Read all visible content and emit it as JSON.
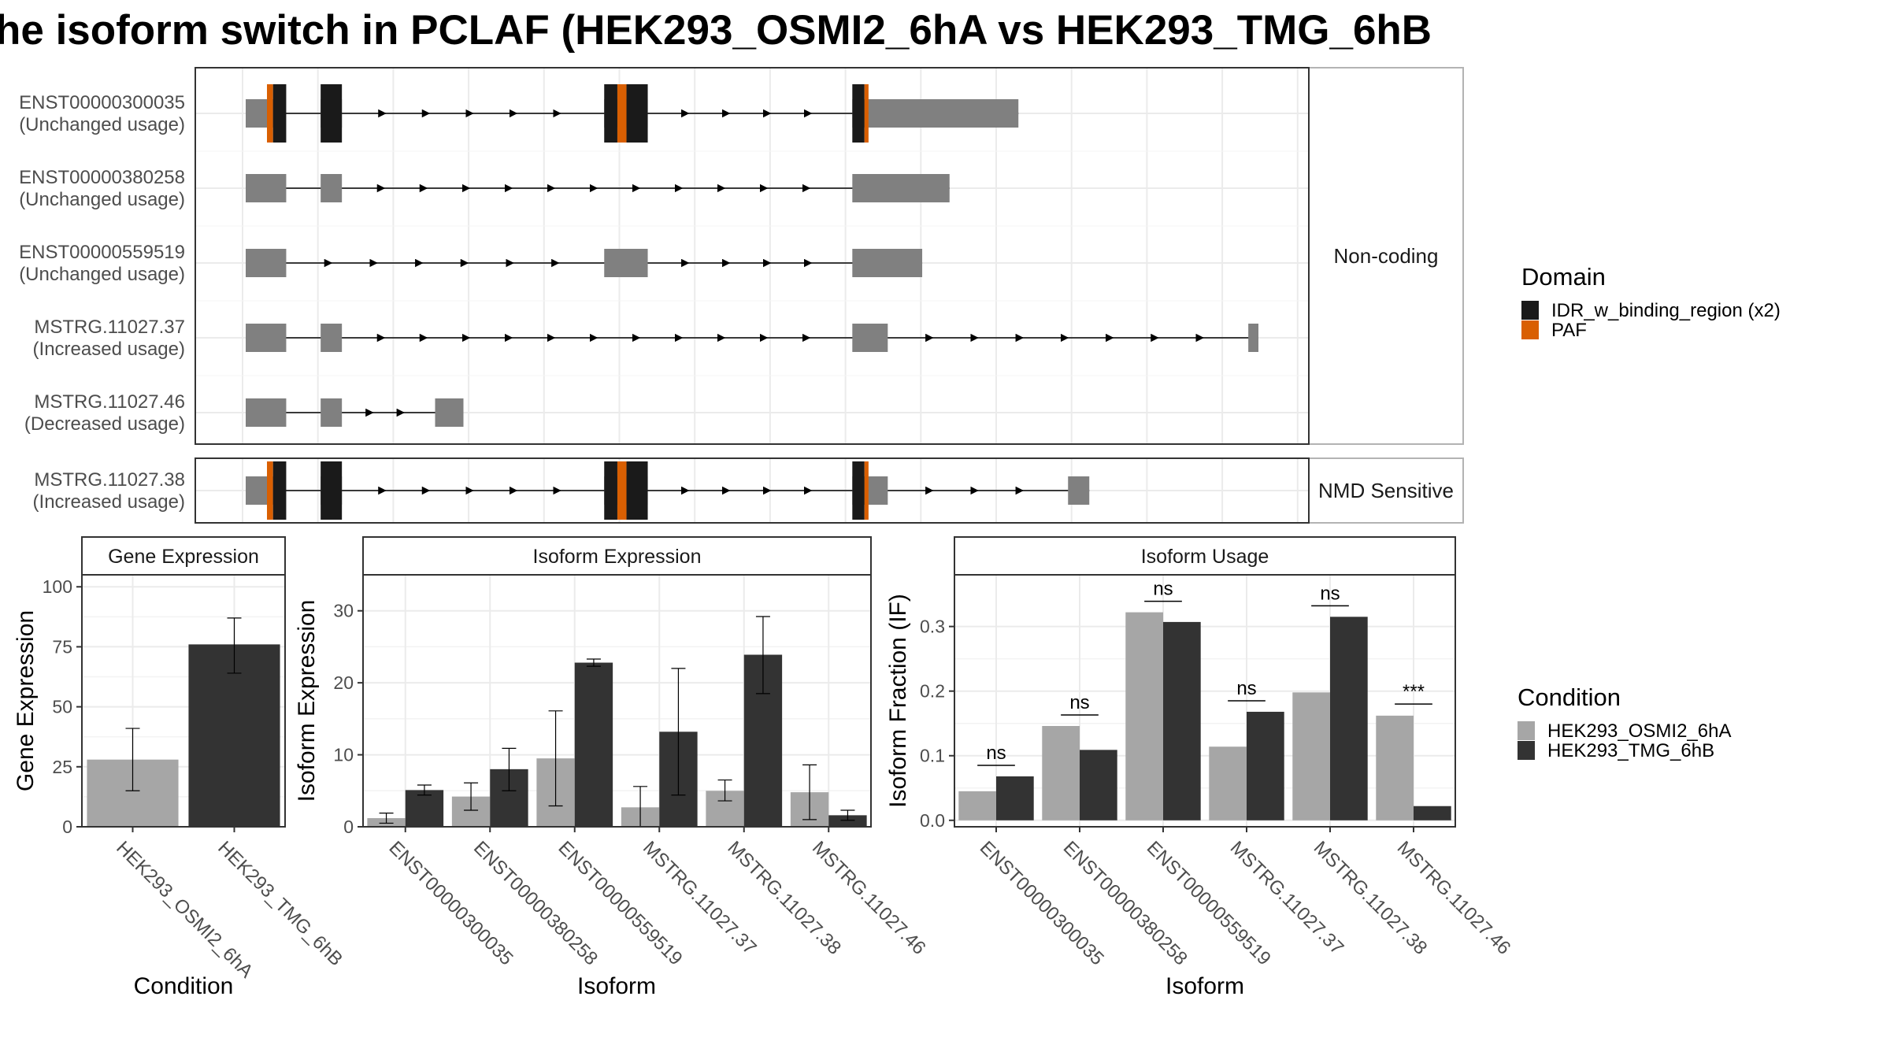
{
  "title": "he isoform switch in PCLAF (HEK293_OSMI2_6hA vs HEK293_TMG_6hB",
  "colors": {
    "exon": "#808080",
    "idr": "#1a1a1a",
    "paf": "#d95f02",
    "cond1": "#a6a6a6",
    "cond2": "#333333",
    "grid": "#ebebeb",
    "strip": "#ffffff",
    "frame": "#333333"
  },
  "structure": {
    "facet_noncoding": "Non-coding",
    "facet_nmd": "NMD Sensitive",
    "legend_title": "Domain",
    "legend_items": [
      {
        "label": "IDR_w_binding_region (x2)",
        "color": "#1a1a1a"
      },
      {
        "label": "PAF",
        "color": "#d95f02"
      }
    ],
    "transcripts": [
      {
        "id": "ENST00000300035",
        "usage": "(Unchanged usage)",
        "group": "Non-coding",
        "exons": [
          [
            0.0,
            0.03
          ],
          [
            0.074,
            0.095
          ],
          [
            0.354,
            0.397
          ],
          [
            0.599,
            0.615
          ],
          [
            0.615,
            0.763
          ]
        ],
        "domains": [
          {
            "type": "paf",
            "range": [
              0.021,
              0.027
            ]
          },
          {
            "type": "idr",
            "range": [
              0.027,
              0.04
            ]
          },
          {
            "type": "idr",
            "range": [
              0.074,
              0.095
            ]
          },
          {
            "type": "idr",
            "range": [
              0.354,
              0.367
            ]
          },
          {
            "type": "paf",
            "range": [
              0.367,
              0.376
            ]
          },
          {
            "type": "idr",
            "range": [
              0.376,
              0.397
            ]
          },
          {
            "type": "idr",
            "range": [
              0.599,
              0.611
            ]
          },
          {
            "type": "paf",
            "range": [
              0.611,
              0.615
            ]
          }
        ]
      },
      {
        "id": "ENST00000380258",
        "usage": "(Unchanged usage)",
        "group": "Non-coding",
        "exons": [
          [
            0.0,
            0.04
          ],
          [
            0.074,
            0.095
          ],
          [
            0.599,
            0.695
          ]
        ],
        "domains": []
      },
      {
        "id": "ENST00000559519",
        "usage": "(Unchanged usage)",
        "group": "Non-coding",
        "exons": [
          [
            0.0,
            0.04
          ],
          [
            0.354,
            0.397
          ],
          [
            0.599,
            0.668
          ]
        ],
        "domains": []
      },
      {
        "id": "MSTRG.11027.37",
        "usage": "(Increased usage)",
        "group": "Non-coding",
        "exons": [
          [
            0.0,
            0.04
          ],
          [
            0.074,
            0.095
          ],
          [
            0.599,
            0.634
          ],
          [
            0.99,
            1.0
          ]
        ],
        "domains": []
      },
      {
        "id": "MSTRG.11027.46",
        "usage": "(Decreased usage)",
        "group": "Non-coding",
        "exons": [
          [
            0.0,
            0.04
          ],
          [
            0.074,
            0.095
          ],
          [
            0.187,
            0.215
          ]
        ],
        "domains": []
      },
      {
        "id": "MSTRG.11027.38",
        "usage": "(Increased usage)",
        "group": "NMD Sensitive",
        "exons": [
          [
            0.0,
            0.03
          ],
          [
            0.074,
            0.095
          ],
          [
            0.354,
            0.397
          ],
          [
            0.599,
            0.615
          ],
          [
            0.615,
            0.634
          ],
          [
            0.812,
            0.833
          ]
        ],
        "domains": [
          {
            "type": "paf",
            "range": [
              0.021,
              0.027
            ]
          },
          {
            "type": "idr",
            "range": [
              0.027,
              0.04
            ]
          },
          {
            "type": "idr",
            "range": [
              0.074,
              0.095
            ]
          },
          {
            "type": "idr",
            "range": [
              0.354,
              0.367
            ]
          },
          {
            "type": "paf",
            "range": [
              0.367,
              0.376
            ]
          },
          {
            "type": "idr",
            "range": [
              0.376,
              0.397
            ]
          },
          {
            "type": "idr",
            "range": [
              0.599,
              0.611
            ]
          },
          {
            "type": "paf",
            "range": [
              0.611,
              0.615
            ]
          }
        ]
      }
    ]
  },
  "chart_data": [
    {
      "type": "bar",
      "title": "Gene Expression",
      "xlabel": "Condition",
      "ylabel": "Gene Expression",
      "categories": [
        "HEK293_OSMI2_6hA",
        "HEK293_TMG_6hB"
      ],
      "values": [
        28,
        76
      ],
      "error_low": [
        15,
        64
      ],
      "error_high": [
        41,
        87
      ],
      "ylim": [
        0,
        105
      ],
      "yticks": [
        0,
        25,
        50,
        75,
        100
      ],
      "grid": true
    },
    {
      "type": "bar",
      "title": "Isoform Expression",
      "xlabel": "Isoform",
      "ylabel": "Isoform Expression",
      "categories": [
        "ENST00000300035",
        "ENST00000380258",
        "ENST00000559519",
        "MSTRG.11027.37",
        "MSTRG.11027.38",
        "MSTRG.11027.46"
      ],
      "series": [
        {
          "name": "HEK293_OSMI2_6hA",
          "values": [
            1.2,
            4.2,
            9.5,
            2.7,
            5.0,
            4.8
          ],
          "error_low": [
            0.5,
            2.3,
            2.9,
            0.0,
            3.6,
            1.0
          ],
          "error_high": [
            1.9,
            6.1,
            16.1,
            5.6,
            6.5,
            8.6
          ]
        },
        {
          "name": "HEK293_TMG_6hB",
          "values": [
            5.1,
            8.0,
            22.8,
            13.2,
            23.9,
            1.6
          ],
          "error_low": [
            4.4,
            5.0,
            22.3,
            4.4,
            18.5,
            0.9
          ],
          "error_high": [
            5.8,
            10.9,
            23.3,
            22.0,
            29.2,
            2.3
          ]
        }
      ],
      "ylim": [
        0,
        35
      ],
      "yticks": [
        0,
        10,
        20,
        30
      ],
      "grid": true
    },
    {
      "type": "bar",
      "title": "Isoform Usage",
      "xlabel": "Isoform",
      "ylabel": "Isoform Fraction (IF)",
      "categories": [
        "ENST00000300035",
        "ENST00000380258",
        "ENST00000559519",
        "MSTRG.11027.37",
        "MSTRG.11027.38",
        "MSTRG.11027.46"
      ],
      "series": [
        {
          "name": "HEK293_OSMI2_6hA",
          "values": [
            0.045,
            0.146,
            0.322,
            0.114,
            0.198,
            0.162
          ]
        },
        {
          "name": "HEK293_TMG_6hB",
          "values": [
            0.068,
            0.109,
            0.307,
            0.168,
            0.315,
            0.022
          ]
        }
      ],
      "significance": [
        "ns",
        "ns",
        "ns",
        "ns",
        "ns",
        "***"
      ],
      "sig_y": [
        0.085,
        0.163,
        0.339,
        0.185,
        0.332,
        0.18
      ],
      "ylim": [
        -0.01,
        0.38
      ],
      "yticks": [
        0.0,
        0.1,
        0.2,
        0.3
      ],
      "ytick_labels": [
        "0.0",
        "0.1",
        "0.2",
        "0.3"
      ],
      "grid": true
    }
  ],
  "condition_legend": {
    "title": "Condition",
    "items": [
      {
        "label": "HEK293_OSMI2_6hA",
        "color": "#a6a6a6"
      },
      {
        "label": "HEK293_TMG_6hB",
        "color": "#333333"
      }
    ]
  }
}
